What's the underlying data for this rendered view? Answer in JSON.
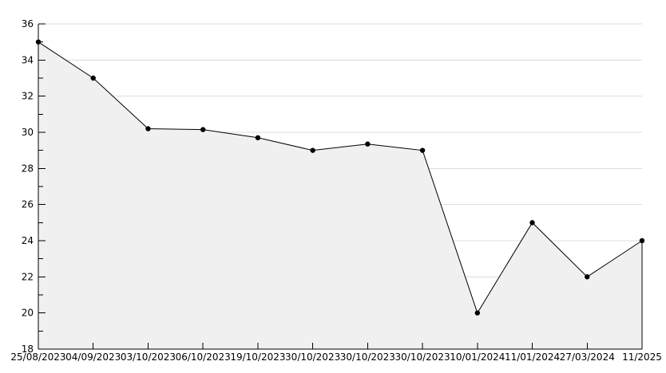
{
  "chart_data": {
    "type": "area",
    "title": "",
    "xlabel": "",
    "ylabel": "",
    "x": [
      "25/08/2023",
      "04/09/2023",
      "03/10/2023",
      "06/10/2023",
      "19/10/2023",
      "30/10/2023",
      "30/10/2023",
      "30/10/2023",
      "10/01/2024",
      "11/01/2024",
      "27/03/2024",
      "11/2025"
    ],
    "values": [
      35,
      33,
      30.2,
      30.15,
      29.7,
      29,
      29.35,
      29,
      20,
      25,
      22,
      24
    ],
    "ylim": [
      18,
      36
    ],
    "y_ticks": [
      18,
      20,
      22,
      24,
      26,
      28,
      30,
      32,
      34,
      36
    ],
    "ytick_step": 2,
    "ytick_minor_step": 1,
    "grid": "horizontal",
    "legend_position": "none",
    "colors": {
      "line": "#000000",
      "marker": "#000000",
      "area_fill": "#f0f0f0",
      "grid": "#dcdcdc",
      "axis": "#000000",
      "text": "#000000",
      "background": "#ffffff"
    }
  }
}
